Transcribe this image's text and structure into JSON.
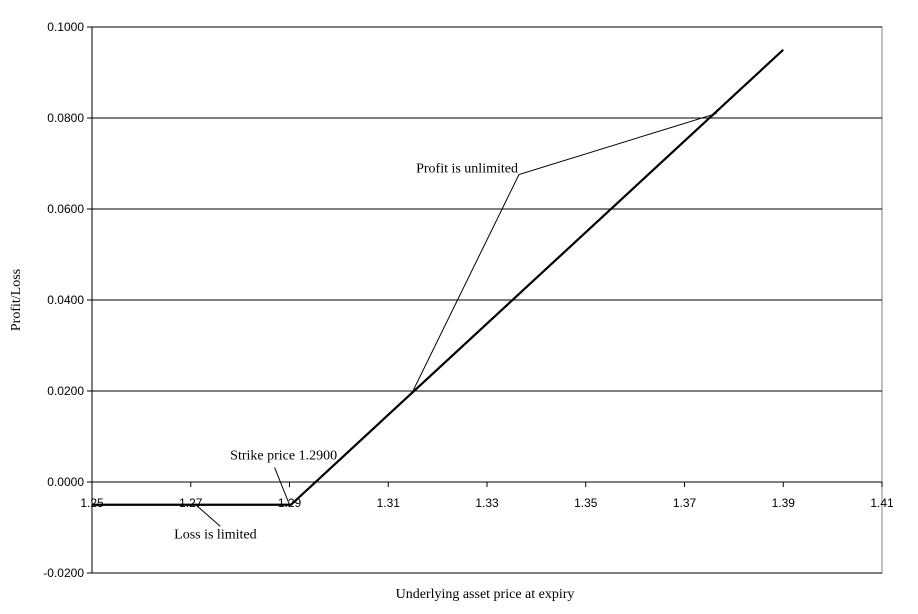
{
  "chart_data": {
    "type": "line",
    "title": "",
    "xlabel": "Underlying asset price at expiry",
    "ylabel": "Profit/Loss",
    "xlim": [
      1.25,
      1.41
    ],
    "ylim": [
      -0.02,
      0.1
    ],
    "x_ticks": [
      1.25,
      1.27,
      1.29,
      1.31,
      1.33,
      1.35,
      1.37,
      1.39,
      1.41
    ],
    "x_tick_labels": [
      "1.25",
      "1.27",
      "1.29",
      "1.31",
      "1.33",
      "1.35",
      "1.37",
      "1.39",
      "1.41"
    ],
    "y_ticks": [
      -0.02,
      0.0,
      0.02,
      0.04,
      0.06,
      0.08,
      0.1
    ],
    "y_tick_labels": [
      "-0.0200",
      "0.0000",
      "0.0200",
      "0.0400",
      "0.0600",
      "0.0800",
      "0.1000"
    ],
    "grid": "horizontal",
    "series": [
      {
        "x": [
          1.25,
          1.29,
          1.2903,
          1.39
        ],
        "y": [
          -0.005,
          -0.005,
          -0.005,
          0.095
        ]
      }
    ],
    "annotations": [
      {
        "text": "Profit is unlimited",
        "point": [
          1.315,
          0.02
        ],
        "point2": [
          1.3765,
          0.081
        ],
        "label_at": [
          1.3385,
          0.0678
        ]
      },
      {
        "text": "Strike price 1.2900",
        "point": [
          1.29,
          -0.005
        ],
        "label_at": [
          1.288,
          0.0045
        ]
      },
      {
        "text": "Loss is limited",
        "point": [
          1.271,
          -0.005
        ],
        "label_at": [
          1.276,
          -0.008
        ]
      }
    ],
    "colors": {
      "line": "#000000",
      "grid": "#000000",
      "background": "#ffffff"
    }
  }
}
